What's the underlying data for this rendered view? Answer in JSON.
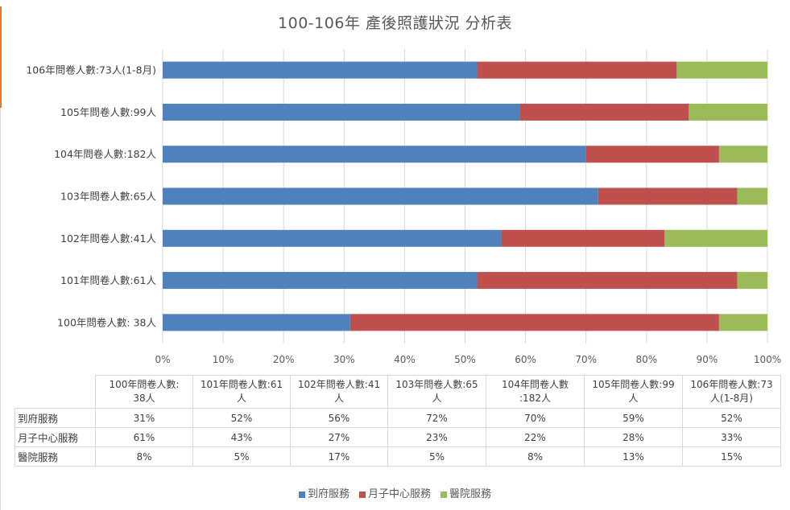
{
  "chart_data": {
    "type": "bar",
    "orientation": "horizontal",
    "stacked": "percent",
    "title": "100-106年 產後照護狀況  分析表",
    "categories": [
      "100年問卷人數: 38人",
      "101年問卷人數:61人",
      "102年問卷人數:41人",
      "103年問卷人數:65人",
      "104年問卷人數:182人",
      "105年問卷人數:99人",
      "106年問卷人數:73人(1-8月)"
    ],
    "series": [
      {
        "name": "到府服務",
        "color": "#4f81bd",
        "values": [
          31,
          52,
          56,
          72,
          70,
          59,
          52
        ]
      },
      {
        "name": "月子中心服務",
        "color": "#c0504d",
        "values": [
          61,
          43,
          27,
          23,
          22,
          28,
          33
        ]
      },
      {
        "name": "醫院服務",
        "color": "#9bbb59",
        "values": [
          8,
          5,
          17,
          5,
          8,
          13,
          15
        ]
      }
    ],
    "xlim": [
      0,
      100
    ],
    "xticks": [
      "0%",
      "10%",
      "20%",
      "30%",
      "40%",
      "50%",
      "60%",
      "70%",
      "80%",
      "90%",
      "100%"
    ],
    "grid": true,
    "legend_position": "bottom"
  },
  "table": {
    "header": [
      [
        "100年問卷人數:",
        "38人"
      ],
      [
        "101年問卷人數:61",
        "人"
      ],
      [
        "102年問卷人數:41",
        "人"
      ],
      [
        "103年問卷人數:65",
        "人"
      ],
      [
        "104年問卷人數",
        ":182人"
      ],
      [
        "105年問卷人數:99",
        "人"
      ],
      [
        "106年問卷人數:73",
        "人(1-8月)"
      ]
    ],
    "rows": [
      {
        "label": "到府服務",
        "cells": [
          "31%",
          "52%",
          "56%",
          "72%",
          "70%",
          "59%",
          "52%"
        ]
      },
      {
        "label": "月子中心服務",
        "cells": [
          "61%",
          "43%",
          "27%",
          "23%",
          "22%",
          "28%",
          "33%"
        ]
      },
      {
        "label": "醫院服務",
        "cells": [
          "8%",
          "5%",
          "17%",
          "5%",
          "8%",
          "13%",
          "15%"
        ]
      }
    ]
  }
}
